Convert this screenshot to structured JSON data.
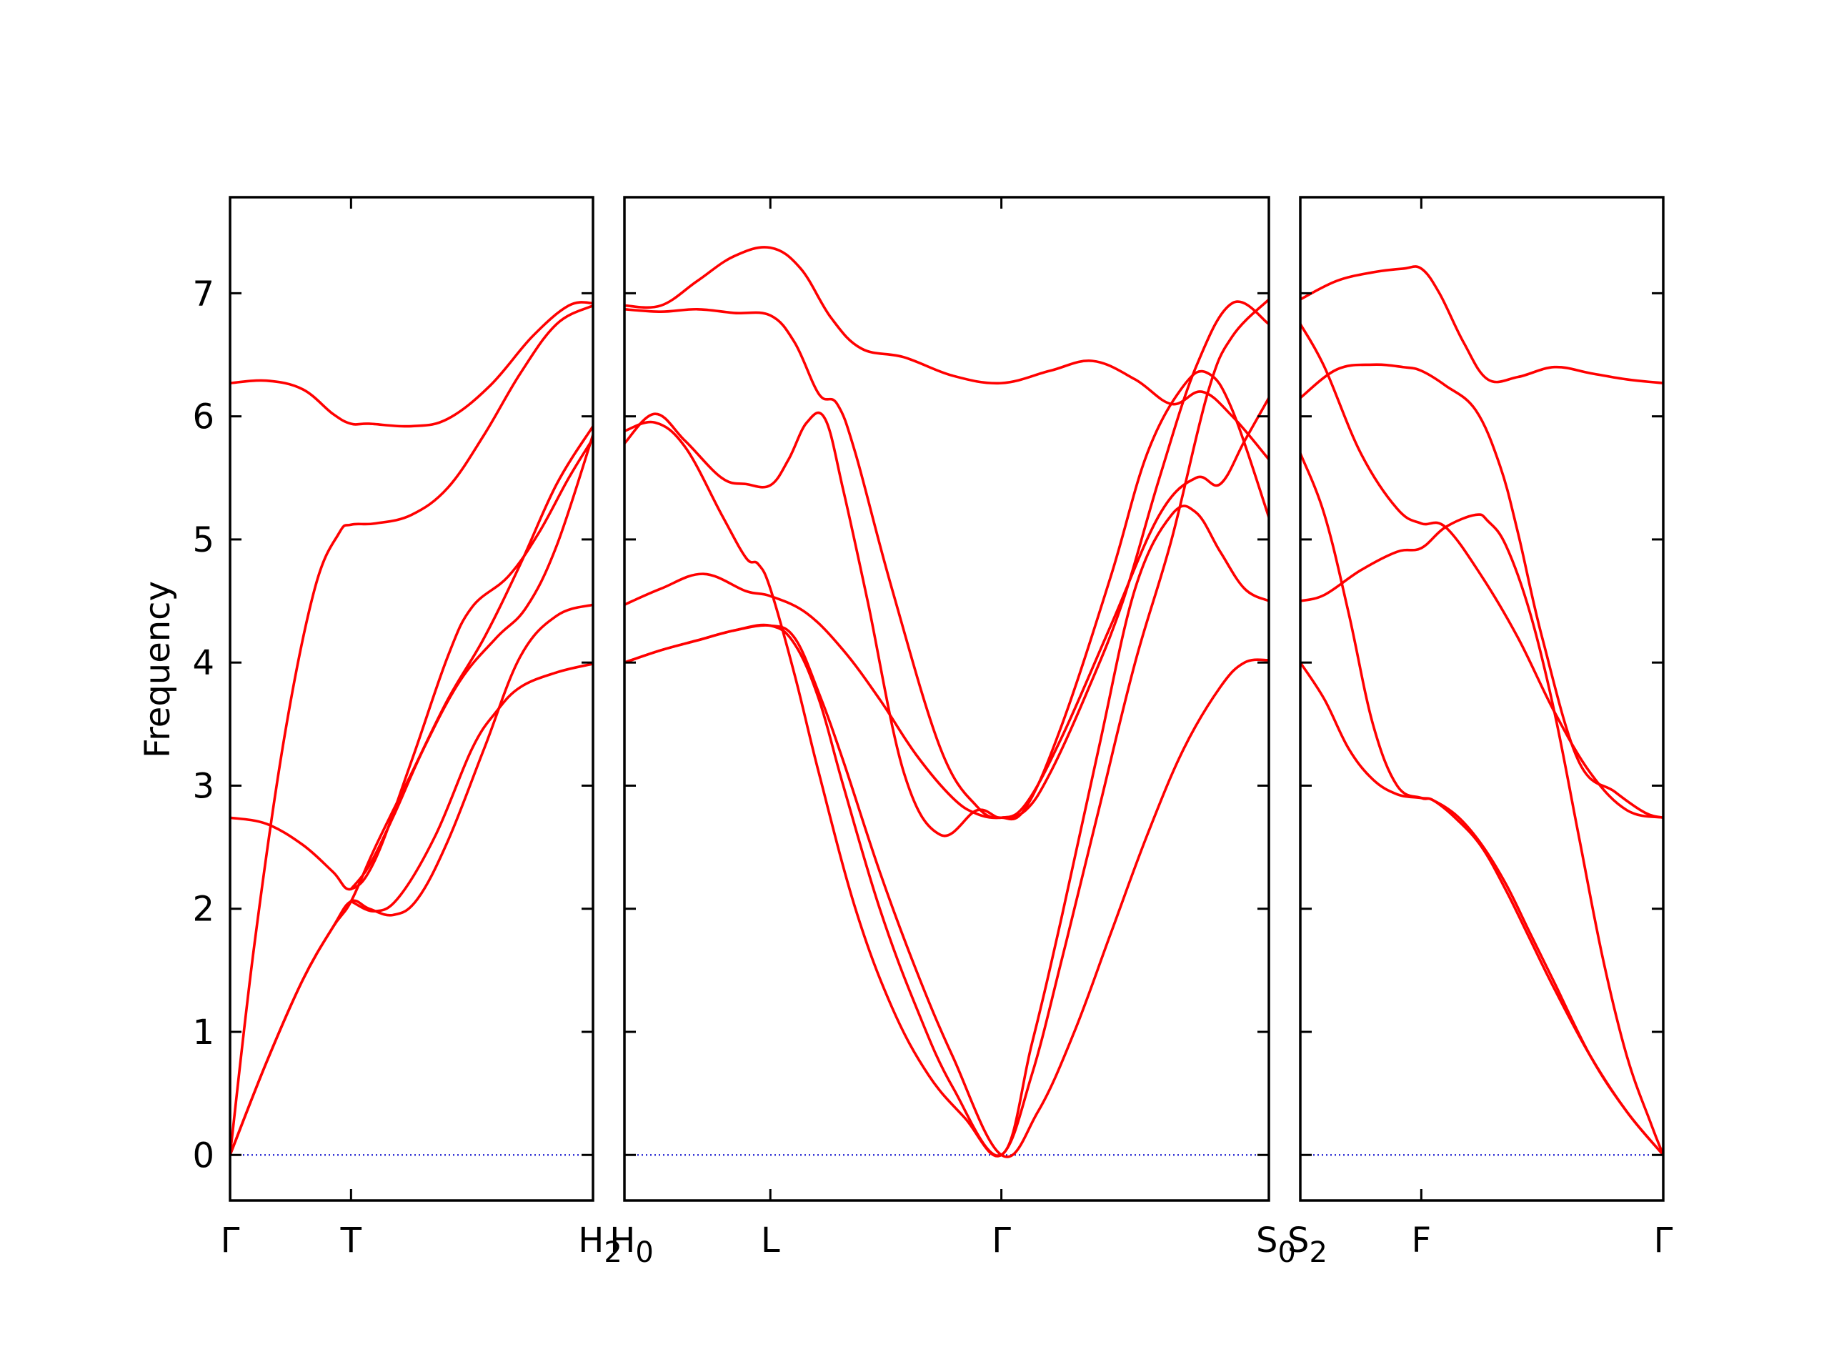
{
  "chart_data": {
    "type": "line",
    "ylabel": "Frequency",
    "ylim": [
      -0.37,
      7.78
    ],
    "yticks": [
      0,
      1,
      2,
      3,
      4,
      5,
      6,
      7
    ],
    "grid": false,
    "legend": "none",
    "line_color": "#ff0000",
    "zero_line_color": "#0000cc",
    "panels": [
      {
        "xlim": [
          0,
          3.0
        ],
        "ticks": [
          {
            "x": 0,
            "label": "Γ"
          },
          {
            "x": 1.0,
            "label": "T"
          },
          {
            "x": 3.0,
            "label": "H",
            "sub": "2"
          }
        ],
        "series": [
          {
            "x": [
              0,
              0.3,
              0.6,
              0.85,
              1.0,
              1.15,
              1.5,
              1.8,
              2.15,
              2.5,
              2.8,
              3.0
            ],
            "y": [
              6.27,
              6.29,
              6.22,
              6.02,
              5.94,
              5.94,
              5.92,
              5.98,
              6.25,
              6.65,
              6.9,
              6.92
            ]
          },
          {
            "x": [
              0,
              0.2,
              0.45,
              0.7,
              0.9,
              1.0,
              1.2,
              1.5,
              1.8,
              2.1,
              2.4,
              2.7,
              3.0
            ],
            "y": [
              0.0,
              1.7,
              3.4,
              4.6,
              5.05,
              5.12,
              5.13,
              5.2,
              5.42,
              5.85,
              6.35,
              6.75,
              6.9
            ]
          },
          {
            "x": [
              0,
              0.3,
              0.6,
              0.85,
              1.0,
              1.2,
              1.5,
              1.8,
              2.0,
              2.3,
              2.55,
              2.8,
              3.0
            ],
            "y": [
              2.74,
              2.69,
              2.52,
              2.3,
              2.16,
              2.4,
              3.2,
              4.05,
              4.45,
              4.7,
              5.05,
              5.5,
              5.82
            ]
          },
          {
            "x": [
              0,
              0.3,
              0.6,
              0.85,
              1.0,
              1.2,
              1.5,
              1.8,
              2.1,
              2.4,
              2.7,
              3.0
            ],
            "y": [
              0.0,
              0.75,
              1.42,
              1.85,
              2.06,
              2.5,
              3.1,
              3.7,
              4.2,
              4.8,
              5.45,
              5.92
            ]
          },
          {
            "x": [
              0,
              0.3,
              0.6,
              0.85,
              1.0,
              1.15,
              1.35,
              1.55,
              1.8,
              2.1,
              2.4,
              2.7,
              3.0
            ],
            "y": [
              0.0,
              0.75,
              1.42,
              1.85,
              2.06,
              2.0,
              1.95,
              2.08,
              2.55,
              3.3,
              4.05,
              4.38,
              4.47
            ]
          },
          {
            "x": [
              1.0,
              1.15,
              1.35,
              1.6,
              1.9,
              2.2,
              2.45,
              2.7,
              3.0
            ],
            "y": [
              2.16,
              2.35,
              2.75,
              3.3,
              3.85,
              4.2,
              4.45,
              4.95,
              5.85
            ]
          },
          {
            "x": [
              1.0,
              1.2,
              1.4,
              1.7,
              2.0,
              2.2,
              2.4,
              2.7,
              3.0
            ],
            "y": [
              2.06,
              1.98,
              2.1,
              2.6,
              3.3,
              3.6,
              3.8,
              3.92,
              3.99
            ]
          }
        ]
      },
      {
        "xlim": [
          0,
          5.3
        ],
        "ticks": [
          {
            "x": 0,
            "label": "H",
            "sub": "0"
          },
          {
            "x": 1.2,
            "label": "L"
          },
          {
            "x": 3.1,
            "label": "Γ"
          },
          {
            "x": 5.3,
            "label": "S",
            "sub": "0"
          }
        ],
        "series": [
          {
            "x": [
              0,
              0.3,
              0.6,
              0.9,
              1.2,
              1.45,
              1.7,
              1.95,
              2.3,
              2.7,
              3.1,
              3.5,
              3.85,
              4.2,
              4.5,
              4.75,
              5.0,
              5.3
            ],
            "y": [
              6.9,
              6.9,
              7.1,
              7.3,
              7.37,
              7.2,
              6.8,
              6.55,
              6.48,
              6.33,
              6.27,
              6.37,
              6.45,
              6.3,
              6.1,
              6.2,
              6.0,
              5.65
            ]
          },
          {
            "x": [
              0,
              0.3,
              0.6,
              0.9,
              1.2,
              1.4,
              1.6,
              1.75,
              1.9,
              2.2,
              2.6,
              2.9,
              3.1,
              3.3,
              3.6,
              4.0,
              4.3,
              4.6,
              4.8,
              5.0,
              5.3
            ],
            "y": [
              6.87,
              6.85,
              6.87,
              6.84,
              6.82,
              6.6,
              6.18,
              6.1,
              5.7,
              4.6,
              3.3,
              2.83,
              2.74,
              2.82,
              3.5,
              4.7,
              5.7,
              6.25,
              6.35,
              6.05,
              5.18
            ]
          },
          {
            "x": [
              0,
              0.25,
              0.5,
              0.8,
              1.0,
              1.2,
              1.35,
              1.5,
              1.65,
              1.8,
              2.0,
              2.3,
              2.6,
              2.9,
              3.1,
              3.3,
              3.6,
              4.0,
              4.4,
              4.7,
              4.9,
              5.1,
              5.3
            ],
            "y": [
              5.78,
              6.02,
              5.8,
              5.5,
              5.45,
              5.44,
              5.65,
              5.95,
              5.98,
              5.4,
              4.5,
              3.1,
              2.6,
              2.8,
              2.74,
              2.85,
              3.4,
              4.3,
              5.2,
              5.5,
              5.45,
              5.8,
              6.15
            ]
          },
          {
            "x": [
              0,
              0.25,
              0.5,
              0.8,
              1.0,
              1.1,
              1.2,
              1.4,
              1.6,
              1.9,
              2.2,
              2.5,
              2.8,
              3.1,
              3.35,
              3.6,
              3.9,
              4.2,
              4.5,
              4.8,
              5.0,
              5.3
            ],
            "y": [
              5.88,
              5.95,
              5.75,
              5.2,
              4.85,
              4.8,
              4.6,
              3.9,
              3.1,
              2.0,
              1.2,
              0.65,
              0.3,
              0.0,
              0.65,
              1.6,
              2.8,
              4.0,
              5.0,
              6.2,
              6.65,
              6.95
            ]
          },
          {
            "x": [
              0,
              0.3,
              0.65,
              1.0,
              1.2,
              1.5,
              1.8,
              2.1,
              2.4,
              2.7,
              2.9,
              3.1,
              3.3,
              3.5,
              3.8,
              4.1,
              4.4,
              4.7,
              5.0,
              5.3
            ],
            "y": [
              4.47,
              4.6,
              4.72,
              4.58,
              4.54,
              4.4,
              4.1,
              3.7,
              3.25,
              2.9,
              2.77,
              2.74,
              2.8,
              3.1,
              3.75,
              4.5,
              5.5,
              6.4,
              6.92,
              6.75
            ]
          },
          {
            "x": [
              0,
              0.3,
              0.6,
              0.9,
              1.2,
              1.4,
              1.6,
              1.8,
              2.1,
              2.4,
              2.7,
              3.1,
              3.35,
              3.6,
              3.9,
              4.2,
              4.5,
              4.7,
              4.9,
              5.1,
              5.3
            ],
            "y": [
              4.0,
              4.1,
              4.18,
              4.26,
              4.3,
              4.15,
              3.7,
              3.0,
              2.0,
              1.2,
              0.55,
              0.0,
              0.9,
              1.95,
              3.3,
              4.6,
              5.2,
              5.22,
              4.9,
              4.6,
              4.5
            ]
          },
          {
            "x": [
              0,
              0.3,
              0.6,
              0.9,
              1.2,
              1.4,
              1.6,
              1.8,
              2.1,
              2.4,
              2.7,
              3.1,
              3.4,
              3.7,
              4.0,
              4.3,
              4.6,
              4.9,
              5.1,
              5.3
            ],
            "y": [
              4.0,
              4.1,
              4.18,
              4.26,
              4.3,
              4.2,
              3.75,
              3.2,
              2.3,
              1.5,
              0.8,
              0.0,
              0.35,
              1.0,
              1.8,
              2.6,
              3.3,
              3.8,
              4.0,
              4.02
            ]
          }
        ]
      },
      {
        "xlim": [
          0,
          3.0
        ],
        "ticks": [
          {
            "x": 0,
            "label": "S",
            "sub": "2"
          },
          {
            "x": 1.0,
            "label": "F"
          },
          {
            "x": 3.0,
            "label": "Γ"
          }
        ],
        "series": [
          {
            "x": [
              0,
              0.3,
              0.6,
              0.85,
              1.0,
              1.15,
              1.35,
              1.55,
              1.8,
              2.1,
              2.4,
              2.7,
              3.0
            ],
            "y": [
              6.95,
              7.1,
              7.17,
              7.2,
              7.2,
              7.0,
              6.6,
              6.3,
              6.32,
              6.4,
              6.35,
              6.3,
              6.27
            ]
          },
          {
            "x": [
              0,
              0.3,
              0.6,
              0.85,
              1.0,
              1.2,
              1.45,
              1.65,
              1.8,
              2.0,
              2.3,
              2.6,
              2.85,
              3.0
            ],
            "y": [
              6.15,
              6.38,
              6.42,
              6.4,
              6.37,
              6.25,
              6.05,
              5.6,
              5.05,
              4.2,
              3.2,
              2.95,
              2.78,
              2.74
            ]
          },
          {
            "x": [
              0,
              0.2,
              0.5,
              0.8,
              1.0,
              1.2,
              1.5,
              1.8,
              2.1,
              2.4,
              2.7,
              3.0
            ],
            "y": [
              6.75,
              6.4,
              5.7,
              5.25,
              5.13,
              5.1,
              4.7,
              4.2,
              3.6,
              3.1,
              2.8,
              2.74
            ]
          },
          {
            "x": [
              0,
              0.2,
              0.5,
              0.8,
              1.0,
              1.2,
              1.45,
              1.55,
              1.7,
              1.9,
              2.1,
              2.3,
              2.5,
              2.7,
              2.9,
              3.0
            ],
            "y": [
              4.5,
              4.55,
              4.75,
              4.9,
              4.93,
              5.1,
              5.2,
              5.15,
              4.95,
              4.4,
              3.6,
              2.6,
              1.6,
              0.8,
              0.25,
              0.0
            ]
          },
          {
            "x": [
              0,
              0.2,
              0.4,
              0.6,
              0.8,
              1.0,
              1.1,
              1.3,
              1.5,
              1.7,
              1.9,
              2.1,
              2.4,
              2.7,
              3.0
            ],
            "y": [
              5.7,
              5.2,
              4.4,
              3.5,
              3.0,
              2.9,
              2.88,
              2.72,
              2.5,
              2.15,
              1.75,
              1.35,
              0.8,
              0.35,
              0.0
            ]
          },
          {
            "x": [
              0,
              0.2,
              0.4,
              0.6,
              0.8,
              1.0,
              1.1,
              1.3,
              1.5,
              1.7,
              1.9,
              2.1,
              2.4,
              2.7,
              3.0
            ],
            "y": [
              4.0,
              3.7,
              3.3,
              3.05,
              2.93,
              2.9,
              2.88,
              2.75,
              2.52,
              2.2,
              1.8,
              1.4,
              0.8,
              0.35,
              0.0
            ]
          }
        ]
      }
    ]
  }
}
